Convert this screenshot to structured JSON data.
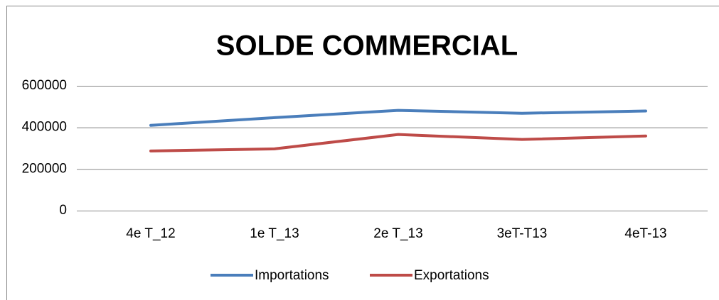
{
  "chart_data": {
    "type": "line",
    "title": "SOLDE COMMERCIAL",
    "categories": [
      "4e T_12",
      "1e T_13",
      "2e T_13",
      "3eT-T13",
      "4eT-13"
    ],
    "series": [
      {
        "name": "Importations",
        "color": "#4a7ebb",
        "values": [
          410000,
          447000,
          482000,
          468000,
          479000
        ]
      },
      {
        "name": "Exportations",
        "color": "#be4b48",
        "values": [
          287000,
          297000,
          366000,
          342000,
          359000
        ]
      }
    ],
    "ylim": [
      0,
      600000
    ],
    "yticks": [
      0,
      200000,
      400000,
      600000
    ],
    "grid": true,
    "legend": "bottom"
  }
}
